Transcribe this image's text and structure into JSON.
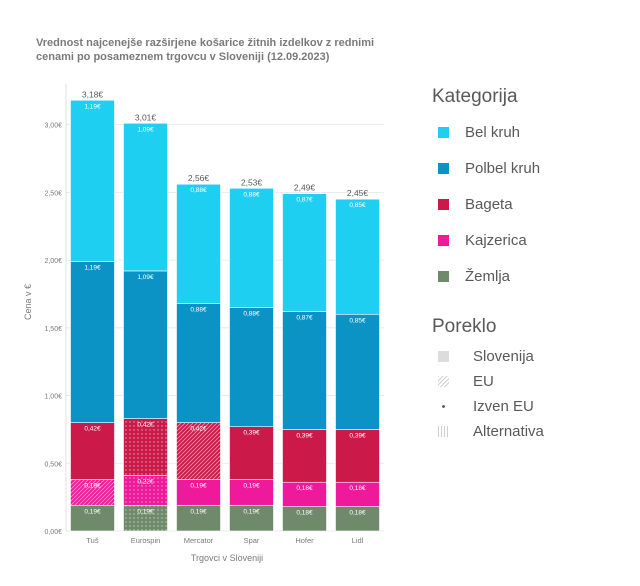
{
  "chart_data": {
    "type": "bar",
    "stacked": true,
    "title": "Vrednost najcenejše razširjene košarice žitnih izdelkov z rednimi\n cenami po posameznem trgovcu v Sloveniji (12.09.2023)",
    "xlabel": "Trgovci v Sloveniji",
    "ylabel": "Cena v €",
    "ylim": [
      0,
      3.3
    ],
    "yticks": [
      0,
      0.5,
      1.0,
      1.5,
      2.0,
      2.5,
      3.0
    ],
    "ytick_labels": [
      "0,00€",
      "0,50€",
      "1,00€",
      "1,50€",
      "2,00€",
      "2,50€",
      "3,00€"
    ],
    "grid": true,
    "categories": [
      "Tuš",
      "Eurospin",
      "Mercator",
      "Spar",
      "Hofer",
      "Lidl"
    ],
    "totals": [
      3.18,
      3.01,
      2.56,
      2.53,
      2.49,
      2.45
    ],
    "total_labels": [
      "3,18€",
      "3,01€",
      "2,56€",
      "2,53€",
      "2,49€",
      "2,45€"
    ],
    "series": [
      {
        "name": "Žemlja",
        "color": "#6f8a6a",
        "values": [
          0.19,
          0.19,
          0.19,
          0.19,
          0.18,
          0.18
        ],
        "labels": [
          "0,19€",
          "0,19€",
          "0,19€",
          "0,19€",
          "0,18€",
          "0,18€"
        ],
        "origin": [
          "Slovenija",
          "Izven EU",
          "Slovenija",
          "Slovenija",
          "Slovenija",
          "Slovenija"
        ]
      },
      {
        "name": "Kajzerica",
        "color": "#ee1a9b",
        "values": [
          0.19,
          0.22,
          0.19,
          0.19,
          0.18,
          0.18
        ],
        "labels": [
          "0,19€",
          "0,22€",
          "0,19€",
          "0,19€",
          "0,18€",
          "0,18€"
        ],
        "origin": [
          "EU",
          "Izven EU",
          "Slovenija",
          "Slovenija",
          "Slovenija",
          "Slovenija"
        ]
      },
      {
        "name": "Bageta",
        "color": "#cb1a4a",
        "values": [
          0.42,
          0.42,
          0.42,
          0.39,
          0.39,
          0.39
        ],
        "labels": [
          "0,42€",
          "0,42€",
          "0,42€",
          "0,39€",
          "0,39€",
          "0,39€"
        ],
        "origin": [
          "Slovenija",
          "Izven EU",
          "EU",
          "Slovenija",
          "Slovenija",
          "Slovenija"
        ]
      },
      {
        "name": "Polbel kruh",
        "color": "#0c93c5",
        "values": [
          1.19,
          1.09,
          0.88,
          0.88,
          0.87,
          0.85
        ],
        "labels": [
          "1,19€",
          "1,09€",
          "0,88€",
          "0,88€",
          "0,87€",
          "0,85€"
        ],
        "origin": [
          "Slovenija",
          "Slovenija",
          "Slovenija",
          "Slovenija",
          "Slovenija",
          "Slovenija"
        ]
      },
      {
        "name": "Bel kruh",
        "color": "#1ecff2",
        "values": [
          1.19,
          1.09,
          0.88,
          0.88,
          0.87,
          0.85
        ],
        "labels": [
          "1,19€",
          "1,09€",
          "0,88€",
          "0,88€",
          "0,87€",
          "0,85€"
        ],
        "origin": [
          "Slovenija",
          "Slovenija",
          "Slovenija",
          "Slovenija",
          "Slovenija",
          "Slovenija"
        ]
      }
    ]
  },
  "legend": {
    "category_title": "Kategorija",
    "categories": [
      {
        "name": "Bel kruh",
        "color": "#1ecff2"
      },
      {
        "name": "Polbel kruh",
        "color": "#0c93c5"
      },
      {
        "name": "Bageta",
        "color": "#cb1a4a"
      },
      {
        "name": "Kajzerica",
        "color": "#ee1a9b"
      },
      {
        "name": "Žemlja",
        "color": "#6f8a6a"
      }
    ],
    "origin_title": "Poreklo",
    "origins": [
      {
        "name": "Slovenija",
        "pattern": "solid"
      },
      {
        "name": "EU",
        "pattern": "diagonal"
      },
      {
        "name": "Izven EU",
        "pattern": "dot"
      },
      {
        "name": "Alternativa",
        "pattern": "vertical"
      }
    ]
  }
}
